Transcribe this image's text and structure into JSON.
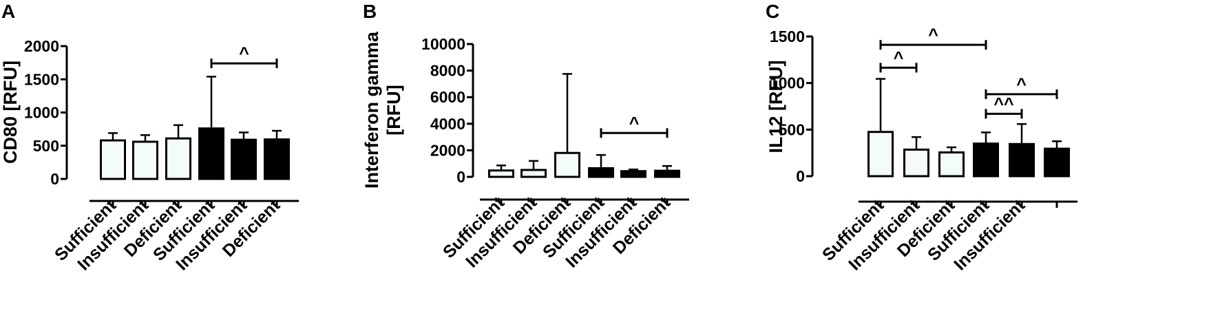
{
  "colors": {
    "open_fill": "#f3fbfb",
    "solid_fill": "#000000",
    "stroke": "#000000"
  },
  "chart_data": [
    {
      "panel": "A",
      "type": "bar",
      "ylabel": "CD80 [RFU]",
      "ylim": [
        0,
        2000
      ],
      "yticks": [
        0,
        500,
        1000,
        1500,
        2000
      ],
      "categories": [
        "Sufficient",
        "Insufficient",
        "Deficient",
        "Sufficient",
        "Insufficient",
        "Deficient"
      ],
      "values": [
        580,
        560,
        610,
        760,
        590,
        595
      ],
      "error_upper": [
        690,
        660,
        810,
        1540,
        700,
        725
      ],
      "fill": [
        "open",
        "open",
        "open",
        "solid",
        "solid",
        "solid"
      ],
      "significance": [
        {
          "from": 3,
          "to": 5,
          "y": 1740,
          "label": "^"
        }
      ]
    },
    {
      "panel": "B",
      "type": "bar",
      "ylabel": "Interferon gamma [RFU]",
      "ylabel_lines": [
        "Interferon gamma",
        "[RFU]"
      ],
      "ylim": [
        0,
        10000
      ],
      "yticks": [
        0,
        2000,
        4000,
        6000,
        8000,
        10000
      ],
      "categories": [
        "Sufficient",
        "Insufficient",
        "Deficient",
        "Sufficient",
        "Insufficient",
        "Deficient"
      ],
      "values": [
        480,
        520,
        1800,
        650,
        430,
        460
      ],
      "error_upper": [
        860,
        1200,
        7750,
        1650,
        560,
        820
      ],
      "fill": [
        "open",
        "open",
        "open",
        "solid",
        "solid",
        "solid"
      ],
      "significance": [
        {
          "from": 3,
          "to": 5,
          "y": 3300,
          "label": "^"
        }
      ]
    },
    {
      "panel": "C",
      "type": "bar",
      "ylabel": "IL12 [RFU]",
      "ylim": [
        0,
        1500
      ],
      "yticks": [
        0,
        500,
        1000,
        1500
      ],
      "categories": [
        "Sufficient",
        "Insufficient",
        "Deficient",
        "Sufficient",
        "Insufficient",
        ""
      ],
      "values": [
        475,
        285,
        255,
        350,
        345,
        295
      ],
      "error_upper": [
        1045,
        420,
        310,
        470,
        560,
        375
      ],
      "fill": [
        "open",
        "open",
        "open",
        "solid",
        "solid",
        "solid"
      ],
      "significance": [
        {
          "from": 0,
          "to": 3,
          "y": 1410,
          "label": "^"
        },
        {
          "from": 0,
          "to": 1,
          "y": 1165,
          "label": "^"
        },
        {
          "from": 3,
          "to": 5,
          "y": 880,
          "label": "^"
        },
        {
          "from": 3,
          "to": 4,
          "y": 670,
          "label": "^^"
        }
      ]
    }
  ]
}
